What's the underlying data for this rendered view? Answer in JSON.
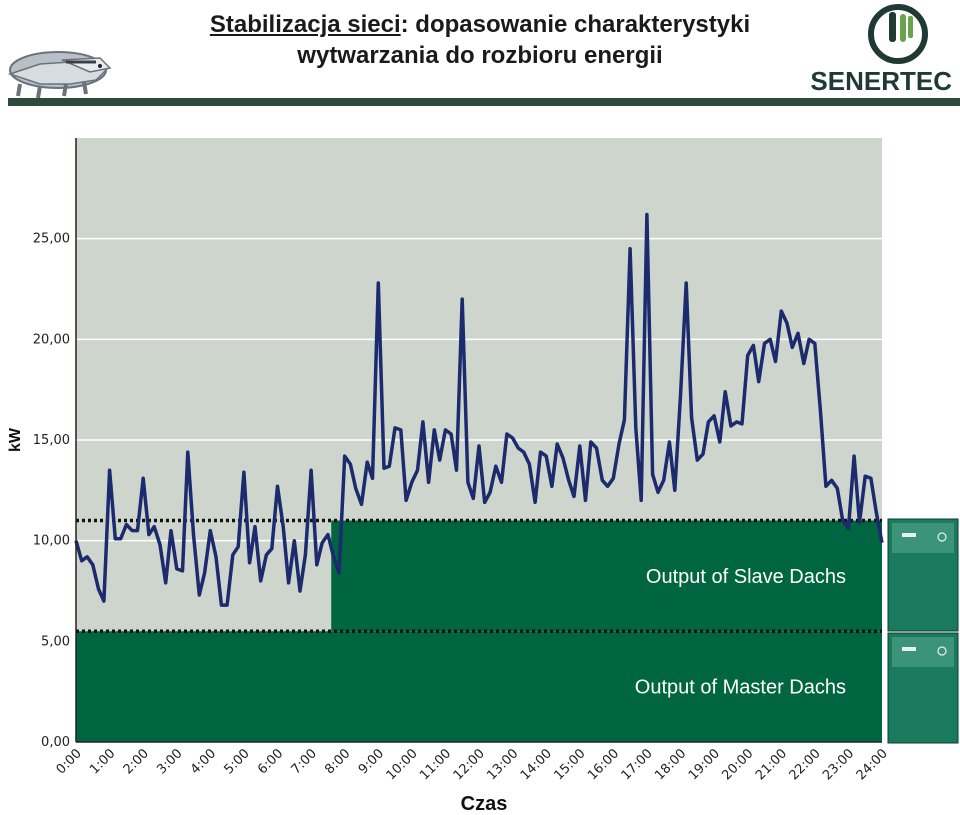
{
  "header": {
    "title_part1": "Stabilizacja sieci",
    "title_part2": ": dopasowanie charakterystyki",
    "title_line2": "wytwarzania do rozbioru energii",
    "brand": "SENERTEC"
  },
  "chart_data": {
    "type": "line",
    "ylabel": "kW",
    "xlabel": "Czas",
    "ylim": [
      0,
      30
    ],
    "xlim": [
      0,
      24
    ],
    "yticks": [
      "0,00",
      "5,00",
      "10,00",
      "15,00",
      "20,00",
      "25,00"
    ],
    "ytick_values": [
      0,
      5,
      10,
      15,
      20,
      25
    ],
    "xticks": [
      "0:00",
      "1:00",
      "2:00",
      "3:00",
      "4:00",
      "5:00",
      "6:00",
      "7:00",
      "8:00",
      "9:00",
      "10:00",
      "11:00",
      "12:00",
      "13:00",
      "14:00",
      "15:00",
      "16:00",
      "17:00",
      "18:00",
      "19:00",
      "20:00",
      "21:00",
      "22:00",
      "23:00",
      "24:00"
    ],
    "series": [
      {
        "color": "#1c2a6e",
        "x": [
          0,
          0.17,
          0.33,
          0.5,
          0.67,
          0.83,
          1.0,
          1.17,
          1.33,
          1.5,
          1.67,
          1.83,
          2.0,
          2.17,
          2.33,
          2.5,
          2.67,
          2.83,
          3.0,
          3.17,
          3.33,
          3.5,
          3.67,
          3.83,
          4.0,
          4.17,
          4.33,
          4.5,
          4.67,
          4.83,
          5.0,
          5.17,
          5.33,
          5.5,
          5.67,
          5.83,
          6.0,
          6.17,
          6.33,
          6.5,
          6.67,
          6.83,
          7.0,
          7.17,
          7.33,
          7.5,
          7.67,
          7.83,
          8.0,
          8.17,
          8.33,
          8.5,
          8.67,
          8.83,
          9.0,
          9.17,
          9.33,
          9.5,
          9.67,
          9.83,
          10.0,
          10.17,
          10.33,
          10.5,
          10.67,
          10.83,
          11.0,
          11.17,
          11.33,
          11.5,
          11.67,
          11.83,
          12.0,
          12.17,
          12.33,
          12.5,
          12.67,
          12.83,
          13.0,
          13.17,
          13.33,
          13.5,
          13.67,
          13.83,
          14.0,
          14.17,
          14.33,
          14.5,
          14.67,
          14.83,
          15.0,
          15.17,
          15.33,
          15.5,
          15.67,
          15.83,
          16.0,
          16.17,
          16.33,
          16.5,
          16.67,
          16.83,
          17.0,
          17.17,
          17.33,
          17.5,
          17.67,
          17.83,
          18.0,
          18.17,
          18.33,
          18.5,
          18.67,
          18.83,
          19.0,
          19.17,
          19.33,
          19.5,
          19.67,
          19.83,
          20.0,
          20.17,
          20.33,
          20.5,
          20.67,
          20.83,
          21.0,
          21.17,
          21.33,
          21.5,
          21.67,
          21.83,
          22.0,
          22.17,
          22.33,
          22.5,
          22.67,
          22.83,
          23.0,
          23.17,
          23.33,
          23.5,
          23.67,
          23.83,
          24.0
        ],
        "values": [
          10.0,
          9.0,
          9.2,
          8.8,
          7.6,
          7.0,
          13.5,
          10.1,
          10.1,
          10.8,
          10.5,
          10.5,
          13.1,
          10.3,
          10.7,
          9.8,
          7.9,
          10.5,
          8.6,
          8.5,
          14.4,
          10.3,
          7.3,
          8.4,
          10.5,
          9.2,
          6.8,
          6.8,
          9.3,
          9.7,
          13.4,
          8.9,
          10.7,
          8.0,
          9.3,
          9.6,
          12.7,
          10.7,
          7.9,
          10.0,
          7.5,
          9.3,
          13.5,
          8.8,
          9.9,
          10.3,
          9.2,
          8.4,
          14.2,
          13.8,
          12.6,
          11.8,
          13.9,
          13.1,
          22.8,
          13.6,
          13.7,
          15.6,
          15.5,
          12.0,
          12.9,
          13.5,
          15.9,
          12.9,
          15.5,
          14.0,
          15.5,
          15.3,
          13.5,
          22.0,
          12.9,
          12.1,
          14.7,
          11.9,
          12.4,
          13.7,
          12.9,
          15.3,
          15.1,
          14.6,
          14.4,
          13.8,
          11.9,
          14.4,
          14.2,
          12.7,
          14.8,
          14.1,
          13.0,
          12.2,
          14.7,
          12.0,
          14.9,
          14.6,
          13.0,
          12.7,
          13.1,
          14.8,
          16.0,
          24.5,
          15.6,
          12.0,
          26.2,
          13.3,
          12.4,
          13.0,
          14.9,
          12.5,
          17.2,
          22.8,
          16.1,
          14.0,
          14.3,
          15.9,
          16.2,
          14.9,
          17.4,
          15.7,
          15.9,
          15.8,
          19.2,
          19.7,
          17.9,
          19.8,
          20.0,
          18.9,
          21.4,
          20.8,
          19.6,
          20.3,
          18.8,
          20.0,
          19.8,
          16.4,
          12.7,
          13.0,
          12.6,
          11.0,
          10.6,
          14.2,
          10.9,
          13.2,
          13.1,
          11.4,
          9.9
        ]
      }
    ],
    "areas": [
      {
        "label": "Output of Master Dachs",
        "from": 0,
        "to": 24,
        "ymin": 0,
        "ymax": 5.5
      },
      {
        "label": "Output of Slave Dachs",
        "from": 7.6,
        "to": 24,
        "ymin": 5.5,
        "ymax": 11.0
      }
    ],
    "threshold_lines": [
      5.5,
      11.0
    ],
    "colors": {
      "background": "#cdd5cc",
      "fill": "#006641",
      "line": "#1c2a6e",
      "grid": "#ffffff",
      "header_bar": "#2f4a3a"
    },
    "grid": true
  }
}
